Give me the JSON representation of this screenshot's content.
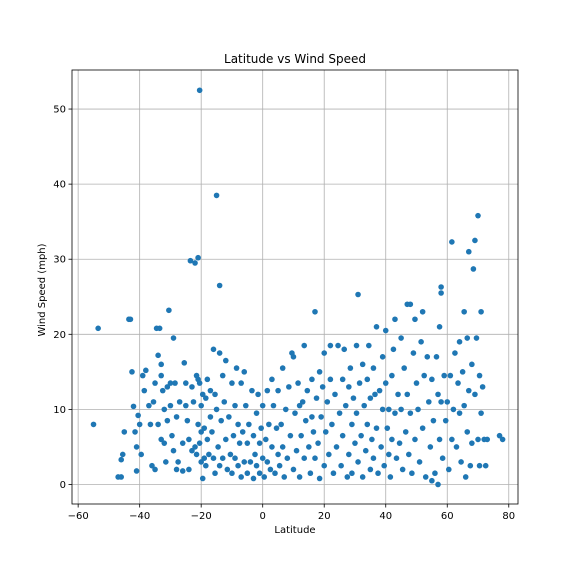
{
  "chart_data": {
    "type": "scatter",
    "title": "Latitude vs Wind Speed",
    "xlabel": "Latitude",
    "ylabel": "Wind Speed (mph)",
    "xlim": [
      -62,
      83
    ],
    "ylim": [
      -2.6,
      55.2
    ],
    "xticks": [
      -60,
      -40,
      -20,
      0,
      20,
      40,
      60,
      80
    ],
    "xtick_labels": [
      "−60",
      "−40",
      "−20",
      "0",
      "20",
      "40",
      "60",
      "80"
    ],
    "yticks": [
      0,
      10,
      20,
      30,
      40,
      50
    ],
    "ytick_labels": [
      "0",
      "10",
      "20",
      "30",
      "40",
      "50"
    ],
    "grid": true,
    "marker_color": "#1f77b4",
    "points": [
      [
        -55,
        8.0
      ],
      [
        -53.5,
        20.8
      ],
      [
        -47,
        1.0
      ],
      [
        -46,
        3.3
      ],
      [
        -46,
        1.0
      ],
      [
        -45.5,
        4.0
      ],
      [
        -45,
        7.0
      ],
      [
        -43.5,
        22.0
      ],
      [
        -43,
        22.0
      ],
      [
        -42.5,
        15.0
      ],
      [
        -42,
        10.4
      ],
      [
        -41.5,
        7.0
      ],
      [
        -41,
        5.0
      ],
      [
        -41,
        1.8
      ],
      [
        -40.5,
        9.2
      ],
      [
        -40,
        8.0
      ],
      [
        -39.5,
        4.0
      ],
      [
        -39,
        14.5
      ],
      [
        -38.5,
        12.5
      ],
      [
        -38,
        15.2
      ],
      [
        -37,
        10.5
      ],
      [
        -36.5,
        8.0
      ],
      [
        -36,
        2.5
      ],
      [
        -35.5,
        11.0
      ],
      [
        -35,
        13.5
      ],
      [
        -35,
        2.0
      ],
      [
        -34.5,
        20.8
      ],
      [
        -34,
        17.2
      ],
      [
        -34,
        8.0
      ],
      [
        -33.5,
        20.8
      ],
      [
        -33,
        16.0
      ],
      [
        -33,
        14.5
      ],
      [
        -33,
        6.0
      ],
      [
        -32.5,
        12.5
      ],
      [
        -32,
        10.0
      ],
      [
        -32,
        5.5
      ],
      [
        -31.5,
        3.0
      ],
      [
        -31,
        13.0
      ],
      [
        -31,
        8.5
      ],
      [
        -30.5,
        23.2
      ],
      [
        -30,
        13.5
      ],
      [
        -30,
        10.5
      ],
      [
        -29.5,
        6.5
      ],
      [
        -29,
        19.5
      ],
      [
        -29,
        4.5
      ],
      [
        -28.5,
        13.5
      ],
      [
        -28,
        9.0
      ],
      [
        -28,
        2.0
      ],
      [
        -27.5,
        3.0
      ],
      [
        -27,
        11.0
      ],
      [
        -26,
        5.5
      ],
      [
        -26,
        1.8
      ],
      [
        -25.5,
        16.2
      ],
      [
        -25,
        13.5
      ],
      [
        -25,
        10.5
      ],
      [
        -24.5,
        8.5
      ],
      [
        -24,
        6.0
      ],
      [
        -24,
        2.0
      ],
      [
        -23.5,
        29.8
      ],
      [
        -23,
        13.0
      ],
      [
        -23,
        4.5
      ],
      [
        -22.5,
        11.0
      ],
      [
        -22,
        5.0
      ],
      [
        -22,
        29.5
      ],
      [
        -21.5,
        14.5
      ],
      [
        -21.5,
        4.0
      ],
      [
        -21,
        30.2
      ],
      [
        -21,
        14.0
      ],
      [
        -21,
        8.0
      ],
      [
        -20.5,
        13.5
      ],
      [
        -20.5,
        5.5
      ],
      [
        -20.5,
        52.5
      ],
      [
        -20,
        10.5
      ],
      [
        -20,
        7.0
      ],
      [
        -20,
        3.0
      ],
      [
        -19.5,
        12.0
      ],
      [
        -19.5,
        0.8
      ],
      [
        -19,
        7.5
      ],
      [
        -19,
        3.5
      ],
      [
        -18.5,
        11.5
      ],
      [
        -18.5,
        2.5
      ],
      [
        -18,
        14.0
      ],
      [
        -18,
        6.0
      ],
      [
        -17.5,
        4.0
      ],
      [
        -17,
        12.5
      ],
      [
        -17,
        9.0
      ],
      [
        -16.5,
        7.0
      ],
      [
        -16,
        18.0
      ],
      [
        -16,
        3.5
      ],
      [
        -15.5,
        12.0
      ],
      [
        -15.5,
        1.5
      ],
      [
        -15,
        38.5
      ],
      [
        -15,
        10.0
      ],
      [
        -14.5,
        5.0
      ],
      [
        -14,
        26.5
      ],
      [
        -14,
        17.5
      ],
      [
        -14,
        2.5
      ],
      [
        -13.5,
        8.5
      ],
      [
        -13,
        14.5
      ],
      [
        -13,
        3.5
      ],
      [
        -12.5,
        11.0
      ],
      [
        -12,
        16.5
      ],
      [
        -12,
        6.0
      ],
      [
        -11.5,
        2.0
      ],
      [
        -11,
        9.0
      ],
      [
        -10.5,
        4.0
      ],
      [
        -10,
        13.5
      ],
      [
        -10,
        1.5
      ],
      [
        -9.5,
        6.5
      ],
      [
        -9,
        10.5
      ],
      [
        -9,
        3.5
      ],
      [
        -8.5,
        15.5
      ],
      [
        -8,
        8.0
      ],
      [
        -8,
        2.5
      ],
      [
        -7.5,
        5.5
      ],
      [
        -7,
        13.5
      ],
      [
        -7,
        1.0
      ],
      [
        -6.5,
        7.0
      ],
      [
        -6,
        15.0
      ],
      [
        -6,
        3.0
      ],
      [
        -5.5,
        10.5
      ],
      [
        -5,
        5.5
      ],
      [
        -5,
        1.5
      ],
      [
        -4.5,
        8.0
      ],
      [
        -4,
        3.0
      ],
      [
        -3.5,
        12.5
      ],
      [
        -3,
        6.5
      ],
      [
        -3,
        0.8
      ],
      [
        -2.5,
        4.0
      ],
      [
        -2,
        9.5
      ],
      [
        -2,
        2.5
      ],
      [
        -1.5,
        12.0
      ],
      [
        -1,
        5.5
      ],
      [
        -1,
        1.5
      ],
      [
        -0.5,
        7.5
      ],
      [
        0,
        3.5
      ],
      [
        0,
        10.5
      ],
      [
        0.5,
        1.0
      ],
      [
        1,
        6.0
      ],
      [
        1.5,
        12.5
      ],
      [
        1.5,
        3.0
      ],
      [
        2,
        8.0
      ],
      [
        2.5,
        2.0
      ],
      [
        3,
        14.0
      ],
      [
        3,
        5.0
      ],
      [
        3.5,
        10.5
      ],
      [
        4,
        1.5
      ],
      [
        4.5,
        7.5
      ],
      [
        5,
        4.0
      ],
      [
        5,
        12.5
      ],
      [
        5.5,
        2.5
      ],
      [
        6,
        8.0
      ],
      [
        6.5,
        15.5
      ],
      [
        6.5,
        5.0
      ],
      [
        7,
        1.0
      ],
      [
        7.5,
        10.0
      ],
      [
        8,
        3.5
      ],
      [
        8.5,
        13.0
      ],
      [
        9,
        6.5
      ],
      [
        9.5,
        17.5
      ],
      [
        10,
        2.0
      ],
      [
        10,
        17.0
      ],
      [
        10.5,
        9.5
      ],
      [
        11,
        4.5
      ],
      [
        11.5,
        13.5
      ],
      [
        12,
        1.0
      ],
      [
        12,
        10.5
      ],
      [
        12.5,
        6.5
      ],
      [
        13,
        11.0
      ],
      [
        13.5,
        18.5
      ],
      [
        13.5,
        3.5
      ],
      [
        14,
        8.5
      ],
      [
        14.5,
        12.5
      ],
      [
        15,
        5.0
      ],
      [
        15.5,
        1.5
      ],
      [
        16,
        9.0
      ],
      [
        16,
        14.0
      ],
      [
        16.5,
        7.0
      ],
      [
        17,
        23.0
      ],
      [
        17,
        3.5
      ],
      [
        17.5,
        11.5
      ],
      [
        18,
        5.5
      ],
      [
        18.5,
        15.0
      ],
      [
        18.5,
        0.8
      ],
      [
        19,
        9.0
      ],
      [
        19.5,
        13.0
      ],
      [
        20,
        2.5
      ],
      [
        20,
        17.5
      ],
      [
        20.5,
        7.0
      ],
      [
        21,
        11.0
      ],
      [
        21.5,
        4.0
      ],
      [
        22,
        18.5
      ],
      [
        22,
        14.0
      ],
      [
        22.5,
        8.0
      ],
      [
        23,
        1.5
      ],
      [
        23.5,
        12.0
      ],
      [
        24,
        5.0
      ],
      [
        24.5,
        18.5
      ],
      [
        25,
        9.5
      ],
      [
        25.5,
        2.5
      ],
      [
        26,
        14.0
      ],
      [
        26,
        6.5
      ],
      [
        26.5,
        18.0
      ],
      [
        27,
        10.5
      ],
      [
        27.5,
        1.0
      ],
      [
        28,
        13.0
      ],
      [
        28,
        4.0
      ],
      [
        28.5,
        15.5
      ],
      [
        29,
        8.0
      ],
      [
        29,
        1.5
      ],
      [
        29.5,
        11.5
      ],
      [
        30,
        5.5
      ],
      [
        30.5,
        18.5
      ],
      [
        30.5,
        9.5
      ],
      [
        31,
        25.3
      ],
      [
        31,
        3.0
      ],
      [
        31.5,
        13.5
      ],
      [
        32,
        6.5
      ],
      [
        32.5,
        16.0
      ],
      [
        32.5,
        1.0
      ],
      [
        33,
        10.5
      ],
      [
        33.5,
        4.5
      ],
      [
        34,
        14.0
      ],
      [
        34,
        8.0
      ],
      [
        34.5,
        18.5
      ],
      [
        35,
        2.0
      ],
      [
        35,
        11.5
      ],
      [
        35.5,
        6.0
      ],
      [
        36,
        15.5
      ],
      [
        36,
        3.5
      ],
      [
        36.5,
        12.0
      ],
      [
        37,
        21.0
      ],
      [
        37,
        7.5
      ],
      [
        37.5,
        1.5
      ],
      [
        38,
        12.5
      ],
      [
        38.5,
        5.0
      ],
      [
        39,
        17.0
      ],
      [
        39,
        10.0
      ],
      [
        39.5,
        2.5
      ],
      [
        40,
        20.5
      ],
      [
        40,
        13.5
      ],
      [
        40.5,
        7.5
      ],
      [
        41,
        4.0
      ],
      [
        41,
        10.0
      ],
      [
        41.5,
        1.0
      ],
      [
        42,
        14.5
      ],
      [
        42,
        6.0
      ],
      [
        42.5,
        18.0
      ],
      [
        43,
        22.0
      ],
      [
        43,
        9.5
      ],
      [
        43.5,
        3.5
      ],
      [
        44,
        12.0
      ],
      [
        44.5,
        5.5
      ],
      [
        45,
        19.5
      ],
      [
        45,
        10.0
      ],
      [
        45.5,
        2.0
      ],
      [
        46,
        15.5
      ],
      [
        46.5,
        7.0
      ],
      [
        47,
        24.0
      ],
      [
        47,
        12.0
      ],
      [
        47.5,
        4.0
      ],
      [
        48,
        24.0
      ],
      [
        48,
        9.5
      ],
      [
        48.5,
        1.5
      ],
      [
        49,
        17.5
      ],
      [
        49.5,
        22.0
      ],
      [
        49.5,
        6.0
      ],
      [
        50,
        13.5
      ],
      [
        50.5,
        10.0
      ],
      [
        51,
        3.0
      ],
      [
        51.5,
        19.0
      ],
      [
        52,
        7.5
      ],
      [
        52,
        23.0
      ],
      [
        52.5,
        14.5
      ],
      [
        53,
        1.0
      ],
      [
        53.5,
        17.0
      ],
      [
        54,
        11.0
      ],
      [
        54.5,
        5.0
      ],
      [
        55,
        14.0
      ],
      [
        55,
        0.5
      ],
      [
        55.5,
        8.5
      ],
      [
        56,
        1.5
      ],
      [
        56.5,
        17.0
      ],
      [
        57,
        12.0
      ],
      [
        57,
        0.0
      ],
      [
        57.5,
        21.0
      ],
      [
        57.5,
        6.0
      ],
      [
        58,
        25.5
      ],
      [
        58,
        26.3
      ],
      [
        58,
        11.0
      ],
      [
        58.5,
        3.5
      ],
      [
        59,
        14.5
      ],
      [
        59.5,
        8.5
      ],
      [
        60,
        11.0
      ],
      [
        60.5,
        2.0
      ],
      [
        61,
        14.5
      ],
      [
        61.5,
        32.3
      ],
      [
        61.5,
        6.0
      ],
      [
        62,
        10.0
      ],
      [
        62.5,
        17.5
      ],
      [
        63,
        5.0
      ],
      [
        63.5,
        13.5
      ],
      [
        64,
        19.0
      ],
      [
        64,
        9.5
      ],
      [
        64.5,
        3.0
      ],
      [
        65,
        15.0
      ],
      [
        65.5,
        23.0
      ],
      [
        65.5,
        10.5
      ],
      [
        66,
        1.0
      ],
      [
        66.5,
        19.5
      ],
      [
        66.5,
        7.0
      ],
      [
        67,
        31.0
      ],
      [
        67,
        12.5
      ],
      [
        67.5,
        2.5
      ],
      [
        68,
        16.0
      ],
      [
        68,
        5.5
      ],
      [
        68.5,
        28.7
      ],
      [
        69,
        12.0
      ],
      [
        69,
        32.5
      ],
      [
        69.5,
        19.5
      ],
      [
        70,
        6.0
      ],
      [
        70,
        35.8
      ],
      [
        70.5,
        14.5
      ],
      [
        70.5,
        2.5
      ],
      [
        71,
        23.0
      ],
      [
        71,
        9.5
      ],
      [
        71.5,
        13.0
      ],
      [
        72,
        6.0
      ],
      [
        72.5,
        2.5
      ],
      [
        73,
        6.0
      ],
      [
        77,
        6.5
      ],
      [
        78,
        6.0
      ]
    ]
  }
}
